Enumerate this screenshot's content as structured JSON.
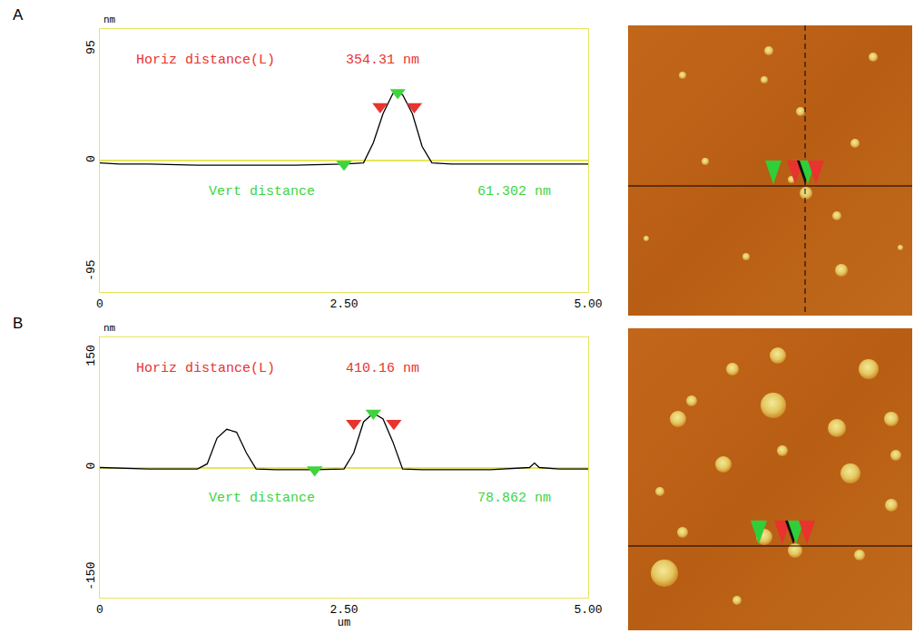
{
  "chart_data": [
    {
      "type": "line",
      "label": "A",
      "ylabel": "nm",
      "xlim": [
        0,
        5
      ],
      "ylim": [
        -112,
        112
      ],
      "xticks": [
        0,
        {
          "value": 2.5,
          "label": "2.50"
        },
        {
          "value": 5,
          "label": "5.00"
        }
      ],
      "yticks": [
        -95,
        0,
        95
      ],
      "grid": false,
      "tick_labels": true,
      "annotations": [
        {
          "text": "Horiz distance(L)",
          "color": "red"
        },
        {
          "text": "354.31 nm",
          "color": "red"
        },
        {
          "text": "Vert distance",
          "color": "green"
        },
        {
          "text": "61.302 nm",
          "color": "green"
        }
      ],
      "series": [
        {
          "type": "line",
          "color": "black",
          "x": [
            0,
            0.2,
            0.5,
            1,
            1.5,
            2,
            2.5,
            2.7,
            2.8,
            2.9,
            3.0,
            3.05,
            3.1,
            3.2,
            3.3,
            3.4,
            3.6,
            4,
            4.5,
            5.0
          ],
          "values": [
            -2,
            -3,
            -3,
            -4,
            -4,
            -4,
            -3,
            -2,
            15,
            40,
            57,
            58,
            56,
            40,
            12,
            -2,
            -3,
            -3,
            -3,
            -3
          ]
        },
        {
          "type": "scatter",
          "marker": "triangle-down",
          "color": "green",
          "x": [
            2.5,
            3.05
          ],
          "values": [
            -3,
            58
          ]
        },
        {
          "type": "scatter",
          "marker": "triangle-down",
          "color": "red",
          "x": [
            2.87,
            3.22
          ],
          "values": [
            46,
            46
          ]
        }
      ]
    },
    {
      "type": "line",
      "label": "B",
      "ylabel": "nm",
      "xlabel": "um",
      "xlim": [
        0,
        5
      ],
      "ylim": [
        -177,
        177
      ],
      "xticks": [
        0,
        {
          "value": 2.5,
          "label": "2.50"
        },
        {
          "value": 5,
          "label": "5.00"
        }
      ],
      "yticks": [
        -150,
        0,
        150
      ],
      "grid": false,
      "tick_labels": true,
      "annotations": [
        {
          "text": "Horiz distance(L)",
          "color": "red"
        },
        {
          "text": "410.16 nm",
          "color": "red"
        },
        {
          "text": "Vert distance",
          "color": "green"
        },
        {
          "text": "78.862 nm",
          "color": "green"
        }
      ],
      "series": [
        {
          "type": "line",
          "color": "black",
          "x": [
            0,
            0.5,
            1.0,
            1.1,
            1.2,
            1.3,
            1.4,
            1.5,
            1.6,
            1.8,
            2.2,
            2.5,
            2.6,
            2.7,
            2.8,
            2.9,
            3.0,
            3.1,
            3.3,
            4.0,
            4.4,
            4.45,
            4.5,
            4.7,
            5.0
          ],
          "values": [
            0,
            -2,
            -2,
            5,
            40,
            52,
            48,
            20,
            -2,
            -3,
            -3,
            -2,
            20,
            62,
            74,
            66,
            35,
            -2,
            -3,
            -3,
            0,
            6,
            0,
            -2,
            -2
          ]
        },
        {
          "type": "scatter",
          "marker": "triangle-down",
          "color": "green",
          "x": [
            2.2,
            2.8
          ],
          "values": [
            -3,
            74
          ]
        },
        {
          "type": "scatter",
          "marker": "triangle-down",
          "color": "red",
          "x": [
            2.6,
            3.01
          ],
          "values": [
            60,
            60
          ]
        }
      ]
    }
  ]
}
